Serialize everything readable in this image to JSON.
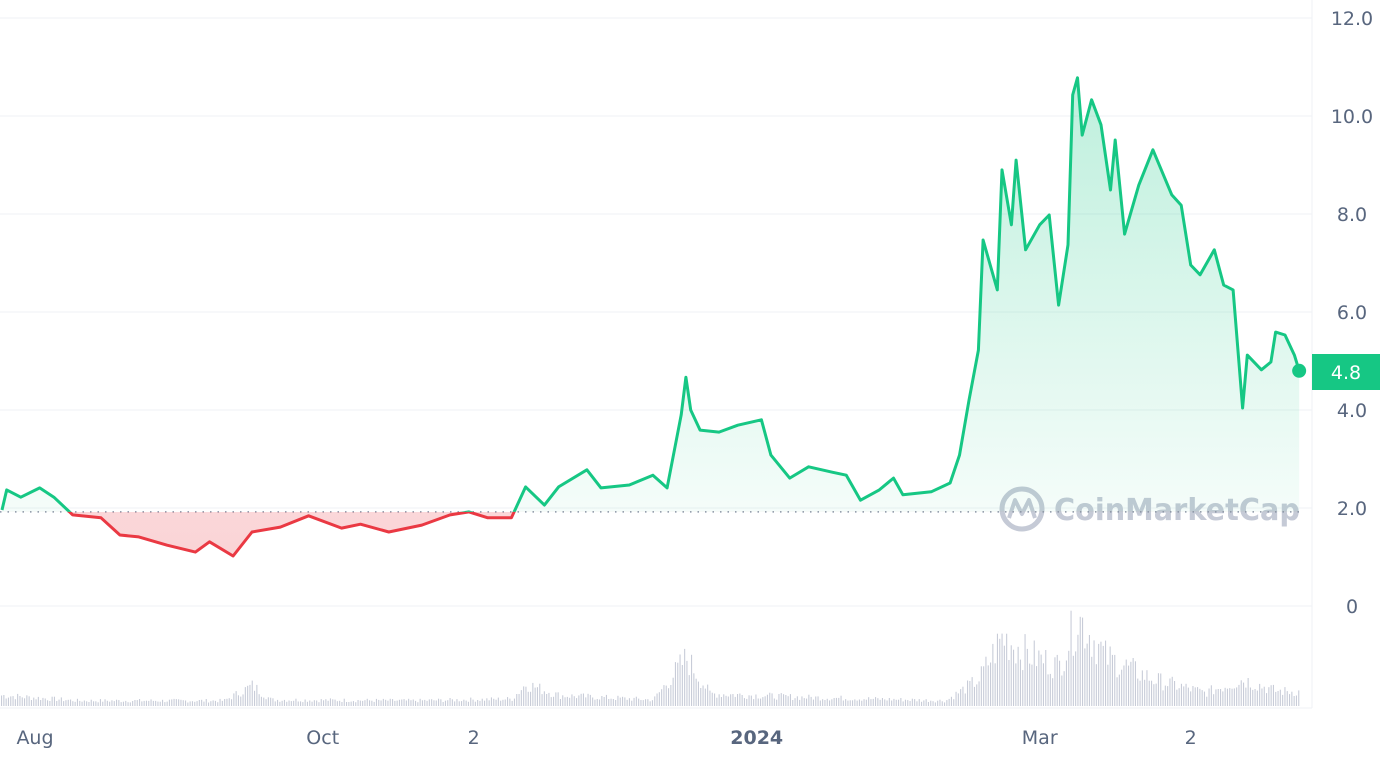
{
  "chart_data": {
    "type": "line",
    "title": "",
    "xlabel": "",
    "ylabel": "",
    "ylim": [
      0,
      12
    ],
    "y_ticks": [
      "0",
      "2.0",
      "4.0",
      "6.0",
      "8.0",
      "10.0",
      "12.0"
    ],
    "x_ticks": [
      {
        "label": "Aug",
        "date": "2023-08-01",
        "bold": false
      },
      {
        "label": "Oct",
        "date": "2023-10-01",
        "bold": false
      },
      {
        "label": "2",
        "date": "2023-11-02",
        "bold": false
      },
      {
        "label": "2024",
        "date": "2024-01-01",
        "bold": true
      },
      {
        "label": "Mar",
        "date": "2024-03-01",
        "bold": false
      },
      {
        "label": "2",
        "date": "2024-04-02",
        "bold": false
      }
    ],
    "grid": true,
    "baseline": 1.92,
    "current_price": "4.8",
    "colors": {
      "up": "#16c784",
      "down": "#ea3943",
      "volume": "#c8ccd8",
      "grid": "#eff2f5",
      "axis_text": "#58667e"
    },
    "watermark": "CoinMarketCap",
    "series": [
      {
        "points": [
          [
            "2023-07-25",
            1.96
          ],
          [
            "2023-07-26",
            2.37
          ],
          [
            "2023-07-29",
            2.22
          ],
          [
            "2023-08-02",
            2.41
          ],
          [
            "2023-08-05",
            2.22
          ],
          [
            "2023-08-09",
            1.86
          ],
          [
            "2023-08-15",
            1.8
          ],
          [
            "2023-08-19",
            1.45
          ],
          [
            "2023-08-23",
            1.41
          ],
          [
            "2023-08-29",
            1.24
          ],
          [
            "2023-09-04",
            1.1
          ],
          [
            "2023-09-07",
            1.31
          ],
          [
            "2023-09-12",
            1.02
          ],
          [
            "2023-09-16",
            1.51
          ],
          [
            "2023-09-22",
            1.61
          ],
          [
            "2023-09-28",
            1.84
          ],
          [
            "2023-10-05",
            1.59
          ],
          [
            "2023-10-09",
            1.67
          ],
          [
            "2023-10-15",
            1.51
          ],
          [
            "2023-10-22",
            1.65
          ],
          [
            "2023-10-28",
            1.86
          ],
          [
            "2023-11-01",
            1.92
          ],
          [
            "2023-11-05",
            1.8
          ],
          [
            "2023-11-10",
            1.8
          ],
          [
            "2023-11-13",
            2.43
          ],
          [
            "2023-11-17",
            2.06
          ],
          [
            "2023-11-20",
            2.43
          ],
          [
            "2023-11-26",
            2.78
          ],
          [
            "2023-11-29",
            2.41
          ],
          [
            "2023-12-05",
            2.47
          ],
          [
            "2023-12-10",
            2.67
          ],
          [
            "2023-12-13",
            2.41
          ],
          [
            "2023-12-16",
            3.9
          ],
          [
            "2023-12-17",
            4.67
          ],
          [
            "2023-12-18",
            4.0
          ],
          [
            "2023-12-20",
            3.59
          ],
          [
            "2023-12-24",
            3.55
          ],
          [
            "2023-12-28",
            3.69
          ],
          [
            "2024-01-02",
            3.8
          ],
          [
            "2024-01-04",
            3.08
          ],
          [
            "2024-01-08",
            2.61
          ],
          [
            "2024-01-12",
            2.84
          ],
          [
            "2024-01-17",
            2.73
          ],
          [
            "2024-01-20",
            2.67
          ],
          [
            "2024-01-23",
            2.16
          ],
          [
            "2024-01-27",
            2.37
          ],
          [
            "2024-01-30",
            2.61
          ],
          [
            "2024-02-01",
            2.27
          ],
          [
            "2024-02-07",
            2.33
          ],
          [
            "2024-02-11",
            2.51
          ],
          [
            "2024-02-13",
            3.08
          ],
          [
            "2024-02-15",
            4.2
          ],
          [
            "2024-02-17",
            5.22
          ],
          [
            "2024-02-18",
            7.47
          ],
          [
            "2024-02-21",
            6.45
          ],
          [
            "2024-02-22",
            8.9
          ],
          [
            "2024-02-24",
            7.78
          ],
          [
            "2024-02-25",
            9.1
          ],
          [
            "2024-02-27",
            7.27
          ],
          [
            "2024-03-01",
            7.78
          ],
          [
            "2024-03-03",
            7.98
          ],
          [
            "2024-03-05",
            6.14
          ],
          [
            "2024-03-07",
            7.37
          ],
          [
            "2024-03-08",
            10.43
          ],
          [
            "2024-03-09",
            10.78
          ],
          [
            "2024-03-10",
            9.61
          ],
          [
            "2024-03-12",
            10.33
          ],
          [
            "2024-03-14",
            9.82
          ],
          [
            "2024-03-16",
            8.49
          ],
          [
            "2024-03-17",
            9.51
          ],
          [
            "2024-03-19",
            7.59
          ],
          [
            "2024-03-22",
            8.59
          ],
          [
            "2024-03-25",
            9.31
          ],
          [
            "2024-03-29",
            8.39
          ],
          [
            "2024-03-31",
            8.18
          ],
          [
            "2024-04-02",
            6.96
          ],
          [
            "2024-04-04",
            6.76
          ],
          [
            "2024-04-07",
            7.27
          ],
          [
            "2024-04-09",
            6.55
          ],
          [
            "2024-04-11",
            6.45
          ],
          [
            "2024-04-13",
            4.04
          ],
          [
            "2024-04-14",
            5.12
          ],
          [
            "2024-04-17",
            4.82
          ],
          [
            "2024-04-19",
            4.98
          ],
          [
            "2024-04-20",
            5.59
          ],
          [
            "2024-04-22",
            5.53
          ],
          [
            "2024-04-24",
            5.12
          ],
          [
            "2024-04-25",
            4.8
          ]
        ]
      }
    ],
    "volume_relative": [
      [
        "2023-07-25",
        12
      ],
      [
        "2023-08-10",
        6
      ],
      [
        "2023-09-10",
        6
      ],
      [
        "2023-09-16",
        23
      ],
      [
        "2023-09-20",
        7
      ],
      [
        "2023-10-20",
        6
      ],
      [
        "2023-11-10",
        8
      ],
      [
        "2023-11-13",
        25
      ],
      [
        "2023-11-20",
        12
      ],
      [
        "2023-12-10",
        7
      ],
      [
        "2023-12-17",
        54
      ],
      [
        "2023-12-22",
        14
      ],
      [
        "2024-01-10",
        10
      ],
      [
        "2024-02-10",
        6
      ],
      [
        "2024-02-17",
        30
      ],
      [
        "2024-02-22",
        78
      ],
      [
        "2024-02-27",
        60
      ],
      [
        "2024-03-05",
        45
      ],
      [
        "2024-03-09",
        100
      ],
      [
        "2024-03-15",
        55
      ],
      [
        "2024-03-25",
        30
      ],
      [
        "2024-04-05",
        15
      ],
      [
        "2024-04-13",
        30
      ],
      [
        "2024-04-20",
        17
      ],
      [
        "2024-04-25",
        16
      ]
    ]
  }
}
